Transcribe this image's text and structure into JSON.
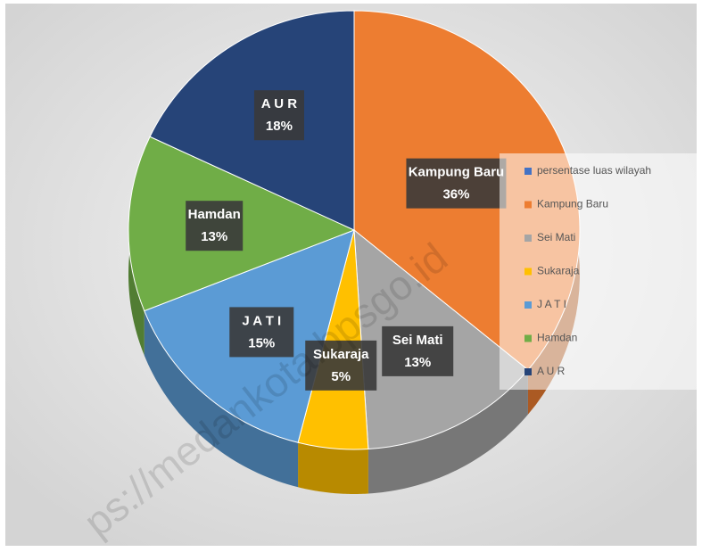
{
  "chart_data": {
    "type": "pie",
    "series_name": "persentase luas wilayah",
    "series_color": "#4472c4",
    "categories": [
      "Kampung Baru",
      "Sei Mati",
      "Sukaraja",
      "J A T I",
      "Hamdan",
      "A U R"
    ],
    "values": [
      36,
      13,
      5,
      15,
      13,
      18
    ],
    "value_labels": [
      "36%",
      "13%",
      "5%",
      "15%",
      "13%",
      "18%"
    ],
    "colors": [
      "#ed7d31",
      "#a5a5a5",
      "#ffc000",
      "#5b9bd5",
      "#70ad47",
      "#264478"
    ],
    "legend": "right",
    "watermark": "ps://medankota.bpsgo.id"
  }
}
